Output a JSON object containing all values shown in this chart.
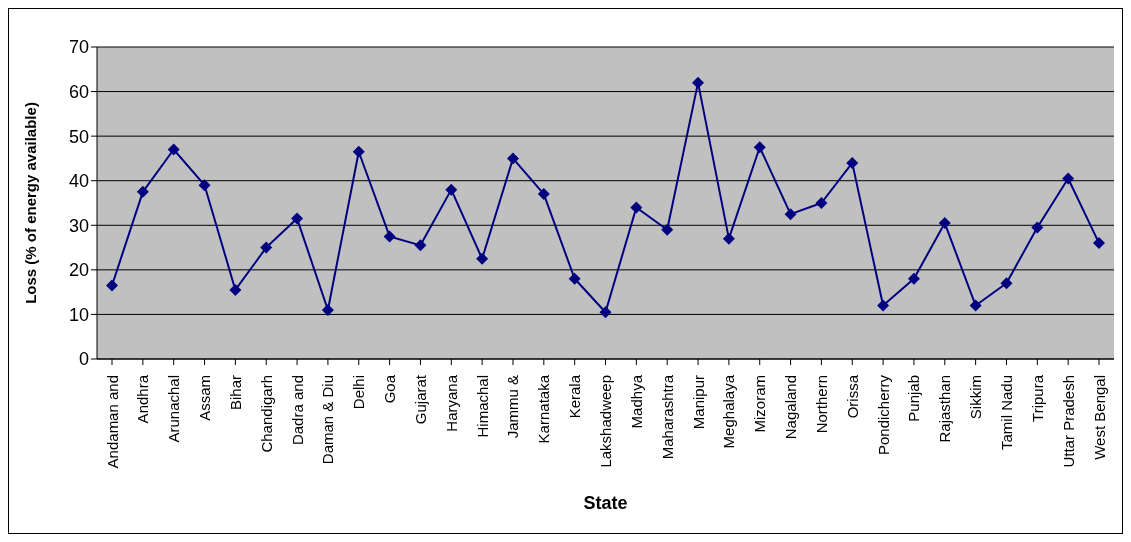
{
  "chart_data": {
    "type": "line",
    "xlabel": "State",
    "ylabel": "Loss (% of energy available)",
    "categories": [
      "Andaman and",
      "Andhra",
      "Arunachal",
      "Assam",
      "Bihar",
      "Chandigarh",
      "Dadra and",
      "Daman & Diu",
      "Delhi",
      "Goa",
      "Gujarat",
      "Haryana",
      "Himachal",
      "Jammu &",
      "Karnataka",
      "Kerala",
      "Lakshadweep",
      "Madhya",
      "Maharashtra",
      "Manipur",
      "Meghalaya",
      "Mizoram",
      "Nagaland",
      "Northern",
      "Orissa",
      "Pondicherry",
      "Punjab",
      "Rajasthan",
      "Sikkim",
      "Tamil Nadu",
      "Tripura",
      "Uttar Pradesh",
      "West Bengal"
    ],
    "series": [
      {
        "color": "#000080",
        "values": [
          16.5,
          37.5,
          47,
          39,
          15.5,
          25,
          31.5,
          11,
          46.5,
          27.5,
          25.5,
          38,
          22.5,
          45,
          37,
          18,
          10.5,
          34,
          29,
          62,
          27,
          47.5,
          32.5,
          35,
          44,
          12,
          18,
          30.5,
          12,
          17,
          29.5,
          40.5,
          26
        ]
      }
    ],
    "ylim": [
      0,
      70
    ],
    "yticks": [
      0,
      10,
      20,
      30,
      40,
      50,
      60,
      70
    ],
    "grid": "y",
    "marker": "diamond"
  }
}
